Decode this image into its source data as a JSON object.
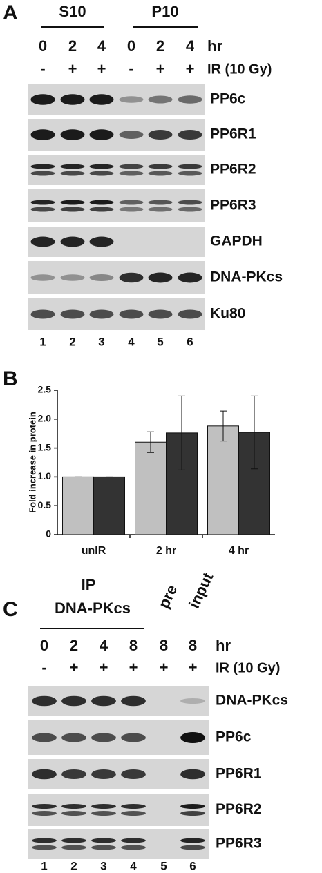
{
  "panel_a": {
    "label": "A",
    "groups": [
      "S10",
      "P10"
    ],
    "time_label": "hr",
    "times": [
      0,
      2,
      4,
      0,
      2,
      4
    ],
    "ir_label": "IR (10 Gy)",
    "ir": [
      "-",
      "+",
      "+",
      "-",
      "+",
      "+"
    ],
    "blots": [
      "PP6c",
      "PP6R1",
      "PP6R2",
      "PP6R3",
      "GAPDH",
      "DNA-PKcs",
      "Ku80"
    ],
    "lanes": [
      1,
      2,
      3,
      4,
      5,
      6
    ]
  },
  "chart_data": {
    "type": "bar",
    "panel_label": "B",
    "ylabel": "Fold increase in protein",
    "categories": [
      "unIR",
      "2 hr",
      "4 hr"
    ],
    "series": [
      {
        "color": "#c0c0c0",
        "values": [
          1,
          1.6,
          1.88
        ],
        "errors": [
          0,
          0.18,
          0.26
        ]
      },
      {
        "color": "#333333",
        "values": [
          1,
          1.76,
          1.77
        ],
        "errors": [
          0,
          0.64,
          0.63
        ]
      }
    ],
    "ylim": [
      0,
      2.5
    ],
    "yticks": [
      0,
      0.5,
      {
        "value": 1,
        "label": "1.0"
      },
      1.5,
      {
        "value": 2,
        "label": "2.0"
      },
      2.5
    ]
  },
  "panel_c": {
    "label": "C",
    "ip_label": "IP",
    "ip_target": "DNA-PKcs",
    "controls": [
      "pre",
      "input"
    ],
    "time_label": "hr",
    "times": [
      0,
      2,
      4,
      8,
      8,
      8
    ],
    "ir_label": "IR (10 Gy)",
    "ir": [
      "-",
      "+",
      "+",
      "+",
      "+",
      "+"
    ],
    "blots": [
      "DNA-PKcs",
      "PP6c",
      "PP6R1",
      "PP6R2",
      "PP6R3"
    ],
    "lanes": [
      1,
      2,
      3,
      4,
      5,
      6
    ]
  }
}
